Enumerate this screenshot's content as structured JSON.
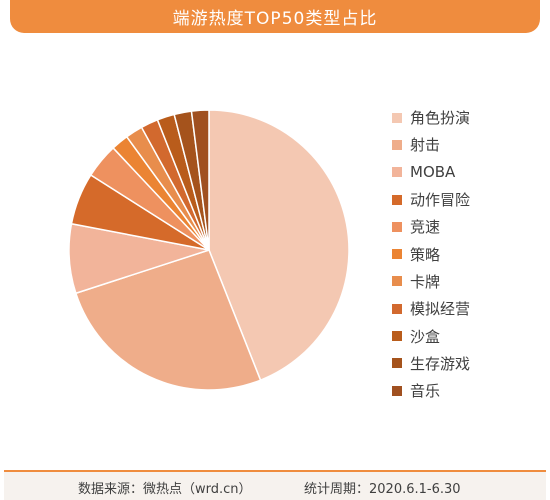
{
  "header": {
    "title": "端游热度TOP50类型占比"
  },
  "footer": {
    "source": "数据来源：微热点（wrd.cn）",
    "period": "统计周期：2020.6.1-6.30"
  },
  "colors": {
    "accent": "#EF8C3E",
    "footer_bg": "#F6F2EE"
  },
  "chart_data": {
    "type": "pie",
    "title": "端游热度TOP50类型占比",
    "legend_position": "right",
    "start_angle_deg": 0,
    "direction": "clockwise",
    "categories": [
      "角色扮演",
      "射击",
      "MOBA",
      "动作冒险",
      "竞速",
      "策略",
      "卡牌",
      "模拟经营",
      "沙盒",
      "生存游戏",
      "音乐"
    ],
    "values": [
      22,
      13,
      4,
      3,
      2,
      1,
      1,
      1,
      1,
      1,
      1
    ],
    "colors": [
      "#F4C8B2",
      "#EFAD8A",
      "#F2B49A",
      "#D56A2A",
      "#EE915F",
      "#EB8433",
      "#E88D4C",
      "#D2692E",
      "#B95C1B",
      "#A5531C",
      "#A05020"
    ]
  }
}
